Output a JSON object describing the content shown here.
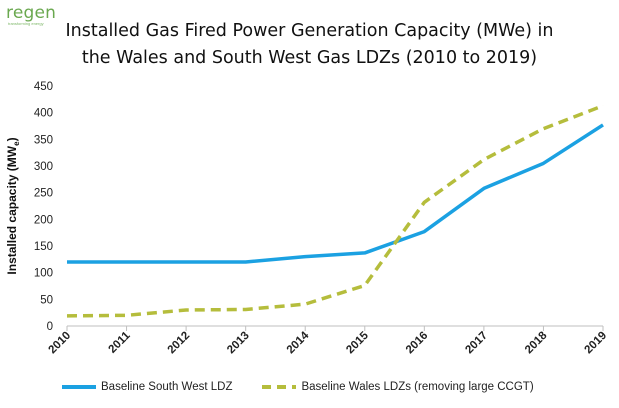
{
  "logo": {
    "text": "regen",
    "subtext": "transforming energy"
  },
  "chart_data": {
    "type": "line",
    "title": "Installed Gas Fired Power Generation Capacity (MWe) in the Wales and South West Gas LDZs (2010 to 2019)",
    "title_lines": [
      "Installed Gas Fired Power Generation Capacity (MWe) in",
      "the Wales and South West Gas LDZs (2010 to 2019)"
    ],
    "ylabel": "Installed capacity (MWe)",
    "xlabel": "",
    "categories": [
      "2010",
      "2011",
      "2012",
      "2013",
      "2014",
      "2015",
      "2016",
      "2017",
      "2018",
      "2019"
    ],
    "ylim": [
      0,
      450
    ],
    "yticks": [
      0,
      50,
      100,
      150,
      200,
      250,
      300,
      350,
      400,
      450
    ],
    "grid": false,
    "legend_position": "bottom",
    "series": [
      {
        "name": "Baseline South West LDZ",
        "color": "#1ba1e2",
        "style": "solid",
        "values": [
          120,
          120,
          120,
          120,
          130,
          137,
          177,
          258,
          305,
          377
        ]
      },
      {
        "name": "Baseline Wales LDZs (removing large CCGT)",
        "color": "#b5bd3c",
        "style": "dashed",
        "values": [
          19,
          20,
          30,
          31,
          41,
          76,
          232,
          312,
          370,
          413
        ]
      }
    ]
  }
}
